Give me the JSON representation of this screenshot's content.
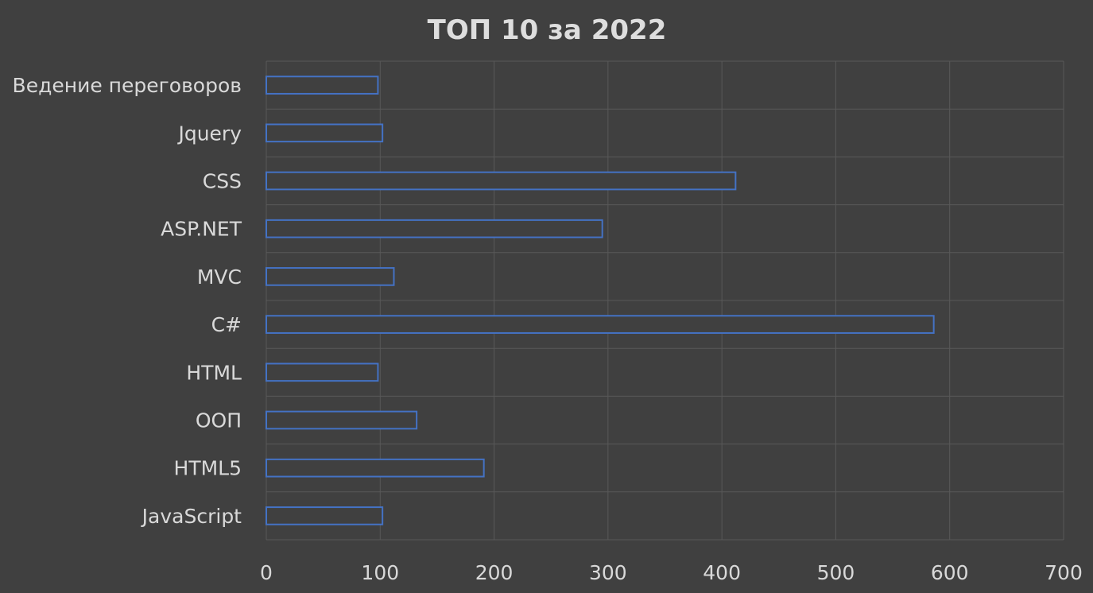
{
  "chart_data": {
    "type": "bar",
    "orientation": "horizontal",
    "title": "ТОП 10 за 2022",
    "categories": [
      "Ведение переговоров",
      "Jquery",
      "CSS",
      "ASP.NET",
      "MVC",
      "C#",
      "HTML",
      "ООП",
      "HTML5",
      "JavaScript"
    ],
    "values": [
      98,
      102,
      412,
      295,
      112,
      586,
      98,
      132,
      191,
      102
    ],
    "xlim": [
      0,
      700
    ],
    "x_ticks": [
      "0",
      "100",
      "200",
      "300",
      "400",
      "500",
      "600",
      "700"
    ],
    "xlabel": "",
    "ylabel": "",
    "grid": true,
    "legend": "none",
    "colors": {
      "background": "#404040",
      "bar_fill": "#404040",
      "bar_outline": "#4472c4",
      "grid": "#595959",
      "text": "#d9d9d9"
    }
  }
}
